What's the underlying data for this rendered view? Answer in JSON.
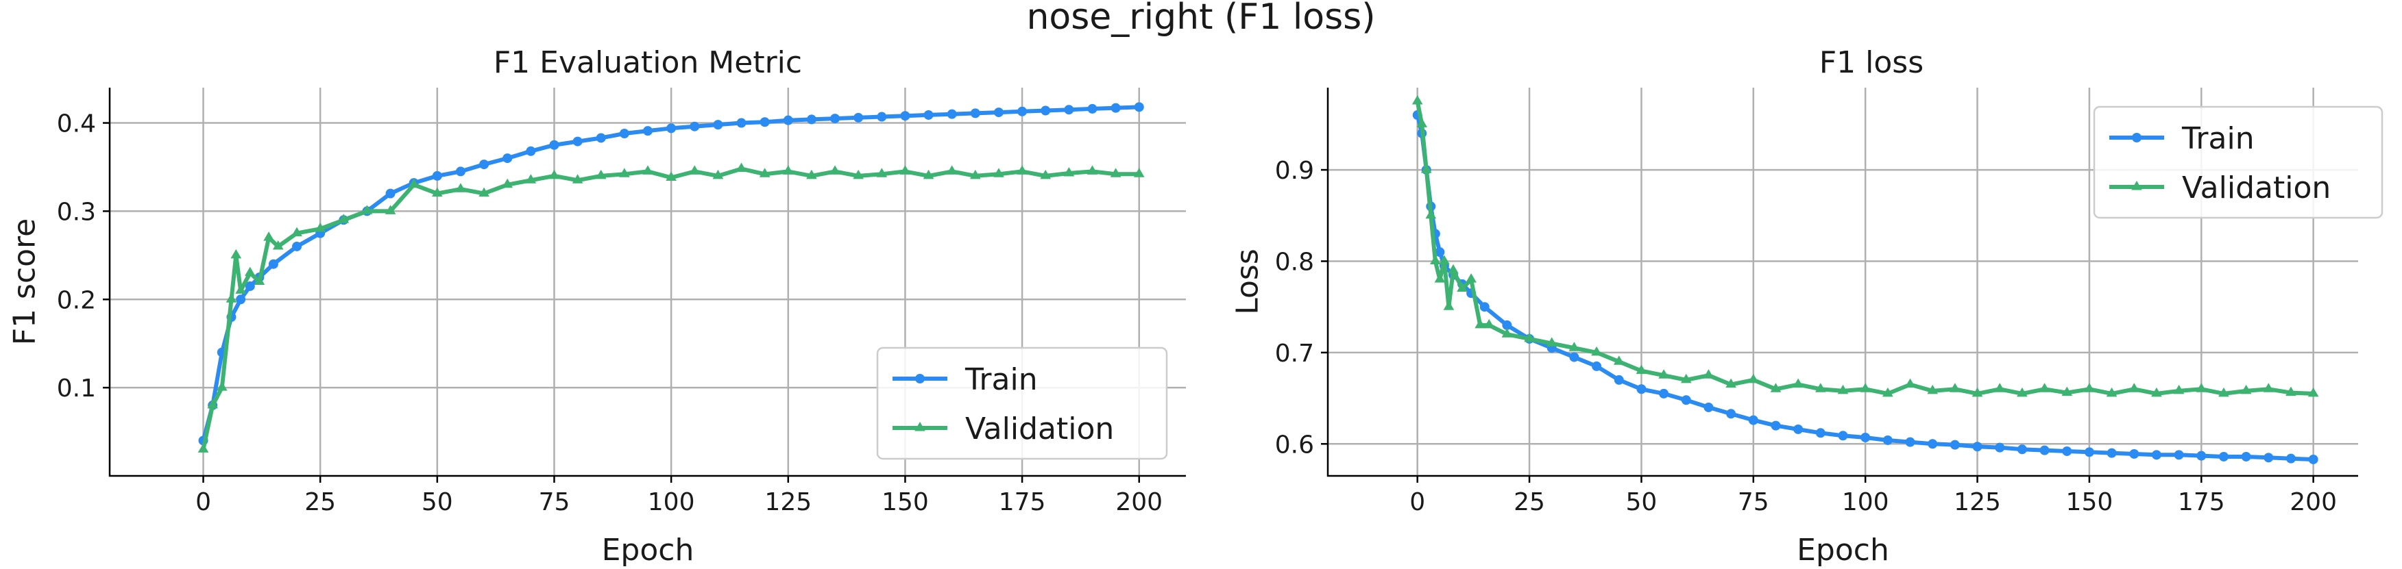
{
  "figure": {
    "suptitle": "nose_right (F1 loss)"
  },
  "colors": {
    "train": "#2a8bf2",
    "validation": "#3cb371"
  },
  "chart_data": [
    {
      "type": "line",
      "title": "F1 Evaluation Metric",
      "xlabel": "Epoch",
      "ylabel": "F1 score",
      "xlim": [
        -20,
        210
      ],
      "ylim": [
        0.0,
        0.44
      ],
      "xticks": [
        0,
        25,
        50,
        75,
        100,
        125,
        150,
        175,
        200
      ],
      "yticks": [
        0.1,
        0.2,
        0.3,
        0.4
      ],
      "ytick_labels": [
        "0.1",
        "0.2",
        "0.3",
        "0.4"
      ],
      "grid": true,
      "legend": "lower-right",
      "series": [
        {
          "name": "Train",
          "marker": "circle",
          "x": [
            0,
            2,
            4,
            6,
            8,
            10,
            12,
            15,
            20,
            25,
            30,
            35,
            40,
            45,
            50,
            55,
            60,
            65,
            70,
            75,
            80,
            85,
            90,
            95,
            100,
            105,
            110,
            115,
            120,
            125,
            130,
            135,
            140,
            145,
            150,
            155,
            160,
            165,
            170,
            175,
            180,
            185,
            190,
            195,
            200
          ],
          "y": [
            0.04,
            0.08,
            0.14,
            0.18,
            0.2,
            0.215,
            0.225,
            0.24,
            0.26,
            0.275,
            0.29,
            0.3,
            0.32,
            0.332,
            0.34,
            0.345,
            0.353,
            0.36,
            0.368,
            0.375,
            0.379,
            0.383,
            0.388,
            0.391,
            0.394,
            0.396,
            0.398,
            0.4,
            0.401,
            0.403,
            0.404,
            0.405,
            0.406,
            0.407,
            0.408,
            0.409,
            0.41,
            0.411,
            0.412,
            0.413,
            0.414,
            0.415,
            0.416,
            0.417,
            0.418
          ]
        },
        {
          "name": "Validation",
          "marker": "tri",
          "x": [
            0,
            2,
            4,
            6,
            7,
            8,
            10,
            12,
            14,
            16,
            20,
            25,
            30,
            35,
            40,
            45,
            50,
            55,
            60,
            65,
            70,
            75,
            80,
            85,
            90,
            95,
            100,
            105,
            110,
            115,
            120,
            125,
            130,
            135,
            140,
            145,
            150,
            155,
            160,
            165,
            170,
            175,
            180,
            185,
            190,
            195,
            200
          ],
          "y": [
            0.03,
            0.08,
            0.1,
            0.2,
            0.25,
            0.21,
            0.23,
            0.22,
            0.27,
            0.26,
            0.275,
            0.28,
            0.29,
            0.3,
            0.3,
            0.33,
            0.32,
            0.325,
            0.32,
            0.33,
            0.335,
            0.34,
            0.335,
            0.34,
            0.342,
            0.345,
            0.338,
            0.345,
            0.34,
            0.348,
            0.342,
            0.345,
            0.34,
            0.345,
            0.34,
            0.342,
            0.345,
            0.34,
            0.345,
            0.34,
            0.342,
            0.345,
            0.34,
            0.343,
            0.345,
            0.342,
            0.342
          ]
        }
      ]
    },
    {
      "type": "line",
      "title": "F1 loss",
      "xlabel": "Epoch",
      "ylabel": "Loss",
      "xlim": [
        -20,
        210
      ],
      "ylim": [
        0.565,
        0.99
      ],
      "xticks": [
        0,
        25,
        50,
        75,
        100,
        125,
        150,
        175,
        200
      ],
      "yticks": [
        0.6,
        0.7,
        0.8,
        0.9
      ],
      "ytick_labels": [
        "0.6",
        "0.7",
        "0.8",
        "0.9"
      ],
      "grid": true,
      "legend": "upper-right",
      "series": [
        {
          "name": "Train",
          "marker": "circle",
          "x": [
            0,
            1,
            2,
            3,
            4,
            5,
            6,
            8,
            10,
            12,
            15,
            20,
            25,
            30,
            35,
            40,
            45,
            50,
            55,
            60,
            65,
            70,
            75,
            80,
            85,
            90,
            95,
            100,
            105,
            110,
            115,
            120,
            125,
            130,
            135,
            140,
            145,
            150,
            155,
            160,
            165,
            170,
            175,
            180,
            185,
            190,
            195,
            200
          ],
          "y": [
            0.96,
            0.94,
            0.9,
            0.86,
            0.83,
            0.81,
            0.795,
            0.785,
            0.775,
            0.765,
            0.75,
            0.73,
            0.715,
            0.705,
            0.695,
            0.685,
            0.67,
            0.66,
            0.655,
            0.648,
            0.64,
            0.633,
            0.626,
            0.62,
            0.616,
            0.612,
            0.609,
            0.607,
            0.604,
            0.602,
            0.6,
            0.599,
            0.597,
            0.596,
            0.594,
            0.593,
            0.592,
            0.591,
            0.59,
            0.589,
            0.588,
            0.588,
            0.587,
            0.586,
            0.586,
            0.585,
            0.584,
            0.583
          ]
        },
        {
          "name": "Validation",
          "marker": "tri",
          "x": [
            0,
            1,
            2,
            3,
            4,
            5,
            6,
            7,
            8,
            10,
            12,
            14,
            16,
            20,
            25,
            30,
            35,
            40,
            45,
            50,
            55,
            60,
            65,
            70,
            75,
            80,
            85,
            90,
            95,
            100,
            105,
            110,
            115,
            120,
            125,
            130,
            135,
            140,
            145,
            150,
            155,
            160,
            165,
            170,
            175,
            180,
            185,
            190,
            195,
            200
          ],
          "y": [
            0.975,
            0.95,
            0.9,
            0.85,
            0.8,
            0.78,
            0.8,
            0.75,
            0.79,
            0.77,
            0.78,
            0.73,
            0.73,
            0.72,
            0.715,
            0.71,
            0.705,
            0.7,
            0.69,
            0.68,
            0.675,
            0.67,
            0.675,
            0.665,
            0.67,
            0.66,
            0.665,
            0.66,
            0.658,
            0.66,
            0.655,
            0.665,
            0.658,
            0.66,
            0.655,
            0.66,
            0.655,
            0.66,
            0.656,
            0.66,
            0.655,
            0.66,
            0.655,
            0.658,
            0.66,
            0.655,
            0.658,
            0.66,
            0.656,
            0.655
          ]
        }
      ]
    }
  ]
}
